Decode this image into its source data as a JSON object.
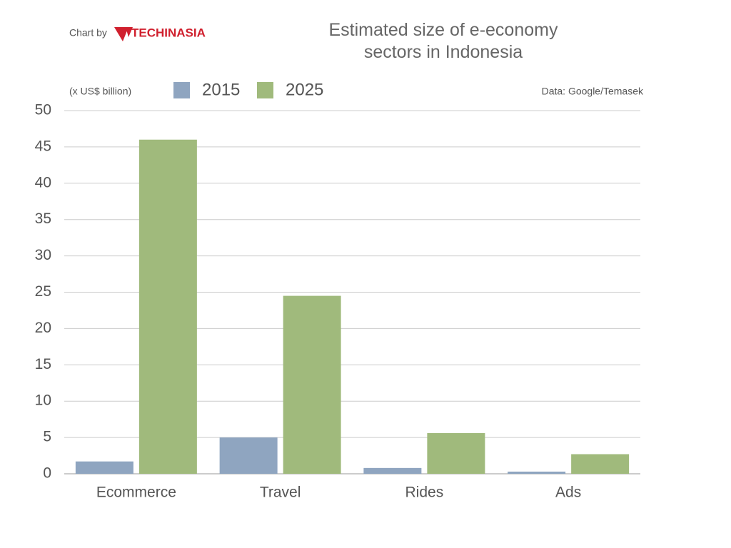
{
  "branding": {
    "prefix": "Chart by",
    "logo": "TECHINASIA"
  },
  "chart_data": {
    "type": "bar",
    "title": "Estimated size of e-economy sectors in Indonesia",
    "unit_label": "(x US$ billion)",
    "source": "Data: Google/Temasek",
    "categories": [
      "Ecommerce",
      "Travel",
      "Rides",
      "Ads"
    ],
    "series": [
      {
        "name": "2015",
        "color": "#8fa5c0",
        "values": [
          1.7,
          5,
          0.8,
          0.3
        ]
      },
      {
        "name": "2025",
        "color": "#a0ba7c",
        "values": [
          46,
          24.5,
          5.6,
          2.7
        ]
      }
    ],
    "ylim": [
      0,
      50
    ],
    "yticks": [
      0,
      5,
      10,
      15,
      20,
      25,
      30,
      35,
      40,
      45,
      50
    ],
    "grid": true
  }
}
